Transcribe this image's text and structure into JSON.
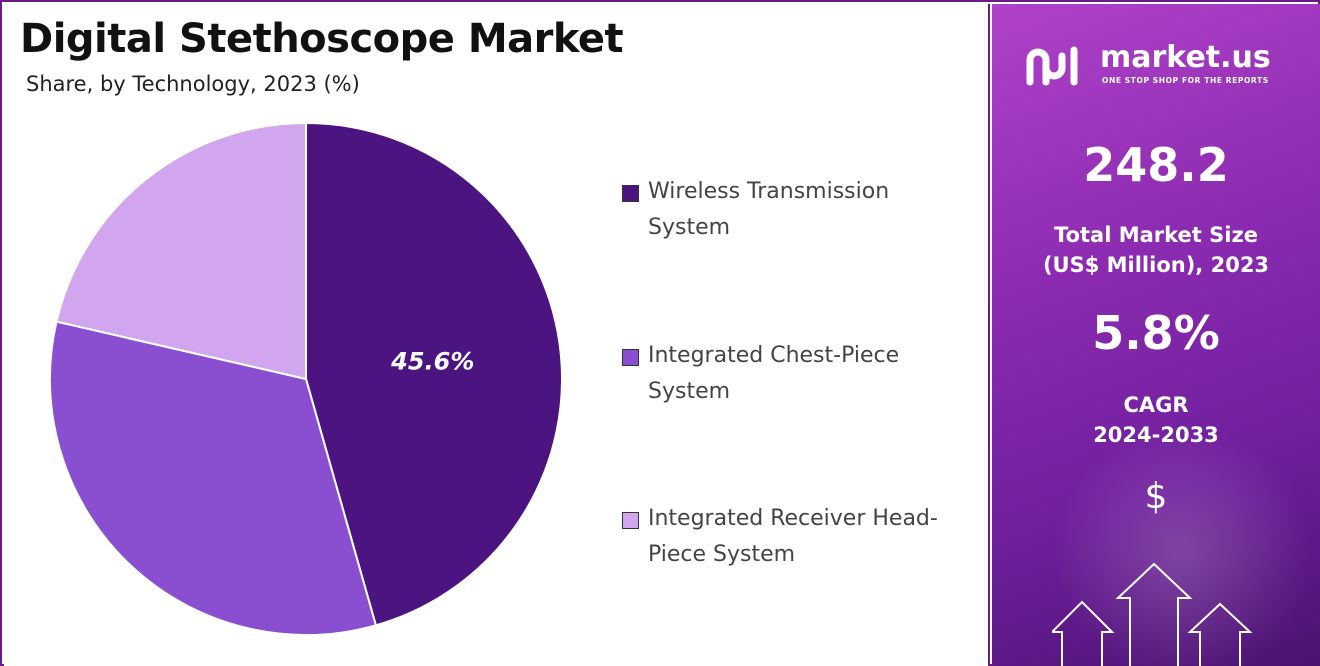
{
  "chart_data": {
    "type": "pie",
    "title": "Digital Stethoscope Market",
    "subtitle": "Share, by Technology, 2023 (%)",
    "slices": [
      {
        "label": "Wireless Transmission System",
        "value": 45.6,
        "color": "#4b1480",
        "data_label": "45.6%"
      },
      {
        "label": "Integrated Chest-Piece System",
        "value": 33.0,
        "color": "#8a4fd0"
      },
      {
        "label": "Integrated Receiver Head-Piece System",
        "value": 21.4,
        "color": "#d2a6ee"
      }
    ],
    "legend_position": "right"
  },
  "sidebar": {
    "brand_name": "market.us",
    "brand_tagline": "ONE STOP SHOP FOR THE REPORTS",
    "market_size_value": "248.2",
    "market_size_label_1": "Total Market Size",
    "market_size_label_2": "(US$ Million), 2023",
    "cagr_value": "5.8%",
    "cagr_label_1": "CAGR",
    "cagr_label_2": "2024-2033",
    "currency_symbol": "$"
  },
  "colors": {
    "frame": "#6a1b8a",
    "sidebar_gradient": [
      "#b042c9",
      "#4b1270"
    ]
  }
}
